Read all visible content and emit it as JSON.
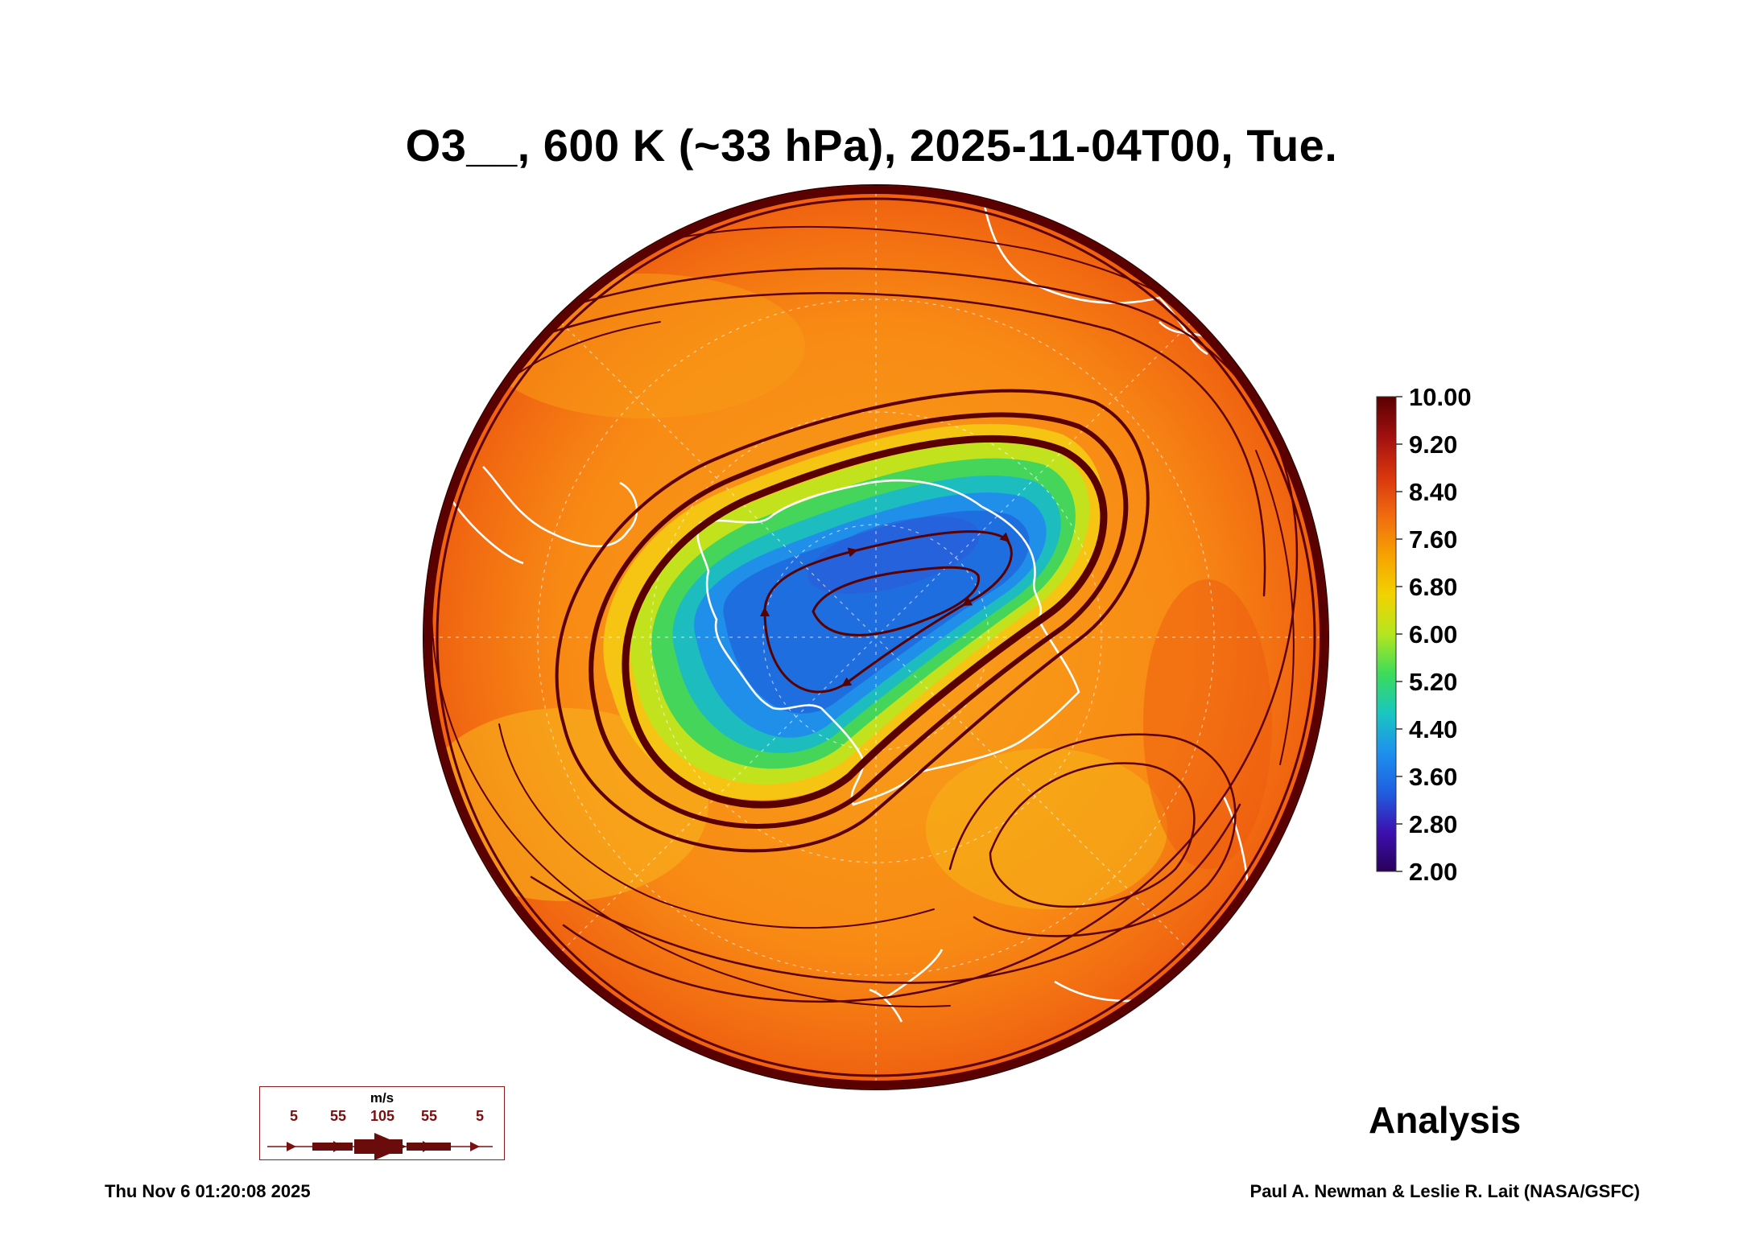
{
  "title": "O3__, 600 K (~33 hPa), 2025-11-04T00, Tue.",
  "colorbar": {
    "labels": [
      "10.00",
      "9.20",
      "8.40",
      "7.60",
      "6.80",
      "6.00",
      "5.20",
      "4.40",
      "3.60",
      "2.80",
      "2.00"
    ],
    "colors": [
      "#2a005a",
      "#3c10b0",
      "#1f5fe0",
      "#1e90ee",
      "#19c6c0",
      "#3cdc5a",
      "#b4e61e",
      "#f2d200",
      "#f7a100",
      "#f06a10",
      "#d8350e",
      "#a01010",
      "#5a0000"
    ]
  },
  "analysis_label": "Analysis",
  "timestamp": "Thu Nov  6 01:20:08 2025",
  "credit": "Paul A. Newman & Leslie R. Lait (NASA/GSFC)",
  "wind_legend": {
    "unit": "m/s",
    "values": [
      "5",
      "55",
      "105",
      "55",
      "5"
    ]
  },
  "colors": {
    "background": "#f57a10",
    "ozone_hole": "#1a78e6",
    "streamline": "#5a0000",
    "coastline": "#ffffff"
  }
}
